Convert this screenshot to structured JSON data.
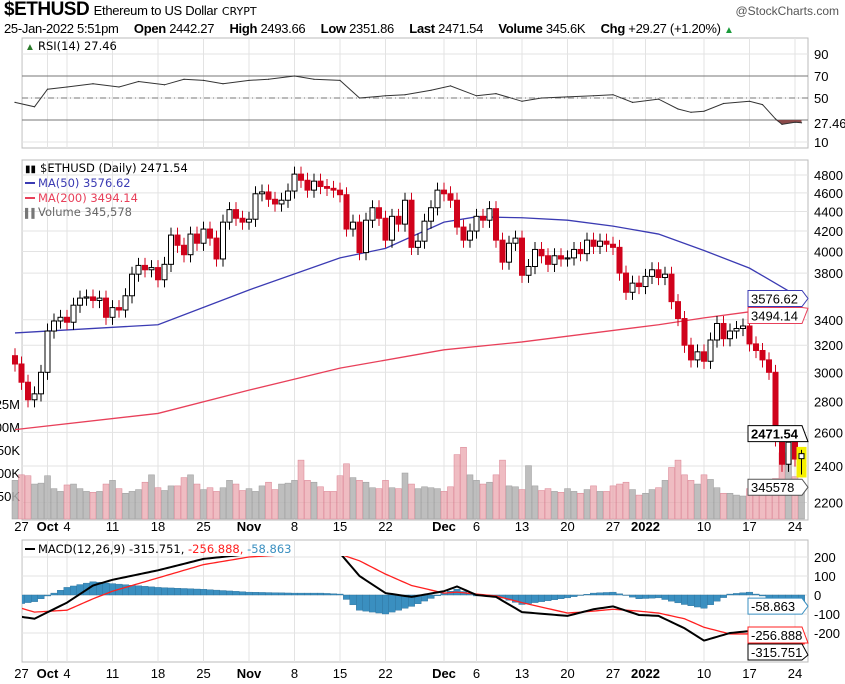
{
  "header": {
    "symbol": "$ETHUSD",
    "name": "Ethereum to US Dollar",
    "exchange": "CRYPT",
    "brand": "@StockCharts.com",
    "datetime": "25-Jan-2022 5:51pm",
    "open_label": "Open",
    "open": "2442.27",
    "high_label": "High",
    "high": "2493.66",
    "low_label": "Low",
    "low": "2351.86",
    "last_label": "Last",
    "last": "2471.54",
    "volume_label": "Volume",
    "volume": "345.6K",
    "chg_label": "Chg",
    "chg": "+29.27 (+1.20%)",
    "chg_icon": "up-triangle-icon"
  },
  "colors": {
    "up": "#000000",
    "down": "#d0021b",
    "ma50": "#3b3bb3",
    "ma200": "#e8405a",
    "macd": "#000000",
    "signal": "#ff2020",
    "hist": "#3a8fc0",
    "highlight": "#f5f000",
    "rsi_low": "#8b4a4a"
  },
  "chart_data": [
    {
      "type": "line",
      "panel": "rsi",
      "legend": "RSI(14) 27.46",
      "ylim": [
        0,
        100
      ],
      "yticks": [
        "90",
        "70",
        "50",
        "10"
      ],
      "reference_lines": [
        70,
        50,
        30
      ],
      "last_tag": "27.46",
      "x": [
        "2021-09-26",
        "2021-09-29",
        "2021-10-01",
        "2021-10-04",
        "2021-10-08",
        "2021-10-12",
        "2021-10-15",
        "2021-10-19",
        "2021-10-22",
        "2021-10-25",
        "2021-10-28",
        "2021-11-01",
        "2021-11-04",
        "2021-11-08",
        "2021-11-11",
        "2021-11-15",
        "2021-11-18",
        "2021-11-22",
        "2021-11-25",
        "2021-11-29",
        "2021-12-02",
        "2021-12-06",
        "2021-12-09",
        "2021-12-13",
        "2021-12-16",
        "2021-12-20",
        "2021-12-24",
        "2021-12-27",
        "2021-12-30",
        "2022-01-03",
        "2022-01-06",
        "2022-01-08",
        "2022-01-10",
        "2022-01-13",
        "2022-01-17",
        "2022-01-19",
        "2022-01-21",
        "2022-01-22",
        "2022-01-24",
        "2022-01-25"
      ],
      "values": [
        46,
        42,
        58,
        60,
        63,
        60,
        65,
        62,
        67,
        66,
        63,
        66,
        67,
        70,
        67,
        66,
        50,
        52,
        53,
        57,
        61,
        52,
        54,
        47,
        50,
        51,
        52,
        53,
        46,
        49,
        40,
        37,
        38,
        45,
        47,
        44,
        31,
        26,
        28,
        27.46
      ]
    },
    {
      "type": "candlestick",
      "panel": "price",
      "legend": "$ETHUSD (Daily) 2471.54",
      "scale": "log",
      "ylim": [
        2150,
        4900
      ],
      "yticks": [
        "4800",
        "4600",
        "4400",
        "4200",
        "4000",
        "3800",
        "3400",
        "3200",
        "3000",
        "2800",
        "2600",
        "2400",
        "2200"
      ],
      "start_date": "2021-09-26",
      "xticks": [
        {
          "date": "2021-09-27",
          "label": "27",
          "bold": false
        },
        {
          "date": "2021-10-01",
          "label": "Oct",
          "bold": true
        },
        {
          "date": "2021-10-04",
          "label": "4",
          "bold": false
        },
        {
          "date": "2021-10-11",
          "label": "11",
          "bold": false
        },
        {
          "date": "2021-10-18",
          "label": "18",
          "bold": false
        },
        {
          "date": "2021-10-25",
          "label": "25",
          "bold": false
        },
        {
          "date": "2021-11-01",
          "label": "Nov",
          "bold": true
        },
        {
          "date": "2021-11-08",
          "label": "8",
          "bold": false
        },
        {
          "date": "2021-11-15",
          "label": "15",
          "bold": false
        },
        {
          "date": "2021-11-22",
          "label": "22",
          "bold": false
        },
        {
          "date": "2021-12-01",
          "label": "Dec",
          "bold": true
        },
        {
          "date": "2021-12-06",
          "label": "6",
          "bold": false
        },
        {
          "date": "2021-12-13",
          "label": "13",
          "bold": false
        },
        {
          "date": "2021-12-20",
          "label": "20",
          "bold": false
        },
        {
          "date": "2021-12-27",
          "label": "27",
          "bold": false
        },
        {
          "date": "2022-01-01",
          "label": "2022",
          "bold": true
        },
        {
          "date": "2022-01-10",
          "label": "10",
          "bold": false
        },
        {
          "date": "2022-01-17",
          "label": "17",
          "bold": false
        },
        {
          "date": "2022-01-24",
          "label": "24",
          "bold": false
        }
      ],
      "close": [
        3060,
        2930,
        2810,
        2850,
        3000,
        3310,
        3390,
        3420,
        3380,
        3520,
        3580,
        3590,
        3560,
        3580,
        3420,
        3500,
        3480,
        3600,
        3790,
        3870,
        3830,
        3850,
        3740,
        3880,
        4160,
        4060,
        3970,
        4170,
        4080,
        4220,
        4130,
        3930,
        4290,
        4420,
        4330,
        4290,
        4320,
        4590,
        4610,
        4530,
        4480,
        4520,
        4620,
        4810,
        4740,
        4630,
        4730,
        4670,
        4650,
        4630,
        4580,
        4220,
        4290,
        3990,
        4310,
        4440,
        4330,
        4110,
        4350,
        4270,
        4520,
        4040,
        4100,
        4300,
        4440,
        4630,
        4590,
        4520,
        4240,
        4110,
        4200,
        4350,
        4310,
        4430,
        4110,
        3900,
        4080,
        4130,
        3780,
        3860,
        4020,
        3960,
        3880,
        3960,
        3930,
        3940,
        4020,
        3980,
        4110,
        4050,
        4100,
        4070,
        4040,
        3800,
        3630,
        3710,
        3680,
        3770,
        3830,
        3760,
        3790,
        3550,
        3410,
        3200,
        3090,
        3150,
        3080,
        3240,
        3370,
        3250,
        3310,
        3330,
        3350,
        3210,
        3160,
        3090,
        3000,
        2560,
        2410,
        2540,
        2440,
        2471.54
      ],
      "last_candle": {
        "open": 2442.27,
        "high": 2493.66,
        "low": 2351.86,
        "close": 2471.54
      },
      "series": [
        {
          "name": "MA(50)",
          "legend": "MA(50) 3576.62",
          "tag": "3576.62",
          "x": [
            "2021-09-26",
            "2021-10-18",
            "2021-11-01",
            "2021-11-15",
            "2021-11-22",
            "2021-12-01",
            "2021-12-06",
            "2021-12-13",
            "2021-12-20",
            "2021-12-27",
            "2022-01-03",
            "2022-01-10",
            "2022-01-17",
            "2022-01-25"
          ],
          "values": [
            3295,
            3360,
            3650,
            3940,
            4030,
            4290,
            4345,
            4335,
            4310,
            4250,
            4170,
            4010,
            3845,
            3576.62
          ]
        },
        {
          "name": "MA(200)",
          "legend": "MA(200) 3494.14",
          "tag": "3494.14",
          "x": [
            "2021-09-26",
            "2021-10-18",
            "2021-11-01",
            "2021-11-15",
            "2021-12-01",
            "2021-12-13",
            "2022-01-03",
            "2022-01-10",
            "2022-01-17",
            "2022-01-25"
          ],
          "values": [
            2617,
            2720,
            2875,
            3030,
            3165,
            3225,
            3360,
            3415,
            3465,
            3494.14
          ]
        }
      ]
    },
    {
      "type": "bar",
      "panel": "volume",
      "legend": "Volume 345,578",
      "tag": "345578",
      "yticks": [
        "25M",
        "00M",
        "50K",
        "00K",
        "50K"
      ],
      "values_k": [
        420,
        480,
        470,
        380,
        390,
        470,
        330,
        300,
        370,
        380,
        330,
        300,
        290,
        300,
        380,
        420,
        330,
        280,
        300,
        320,
        400,
        480,
        340,
        310,
        360,
        360,
        450,
        480,
        380,
        320,
        340,
        300,
        340,
        420,
        380,
        310,
        330,
        300,
        360,
        400,
        320,
        380,
        390,
        420,
        640,
        420,
        400,
        350,
        300,
        300,
        470,
        600,
        450,
        420,
        400,
        340,
        330,
        420,
        340,
        330,
        500,
        380,
        330,
        350,
        340,
        330,
        300,
        350,
        700,
        780,
        480,
        420,
        380,
        400,
        480,
        640,
        360,
        350,
        320,
        580,
        360,
        310,
        330,
        300,
        290,
        330,
        300,
        280,
        320,
        360,
        300,
        300,
        360,
        380,
        400,
        320,
        260,
        280,
        320,
        340,
        420,
        560,
        640,
        480,
        420,
        380,
        480,
        430,
        340,
        280,
        280,
        260,
        250,
        330,
        380,
        400,
        420,
        440,
        720,
        1000,
        460,
        345.578
      ]
    },
    {
      "type": "line",
      "panel": "macd",
      "legend_prefix": "MACD(12,26,9)",
      "legend_macd": "-315.751",
      "legend_signal": "-256.888",
      "legend_hist": "-58.863",
      "yticks": [
        "200",
        "100",
        "0",
        "-100",
        "-200"
      ],
      "tags": {
        "hist": "-58.863",
        "signal": "-256.888",
        "macd": "-315.751"
      },
      "x": [
        "2021-09-26",
        "2021-09-29",
        "2021-10-04",
        "2021-10-08",
        "2021-10-11",
        "2021-10-18",
        "2021-10-25",
        "2021-11-01",
        "2021-11-08",
        "2021-11-12",
        "2021-11-15",
        "2021-11-18",
        "2021-11-22",
        "2021-11-26",
        "2021-12-01",
        "2021-12-03",
        "2021-12-06",
        "2021-12-09",
        "2021-12-13",
        "2021-12-20",
        "2021-12-24",
        "2021-12-27",
        "2021-12-31",
        "2022-01-03",
        "2022-01-07",
        "2022-01-10",
        "2022-01-14",
        "2022-01-17",
        "2022-01-20",
        "2022-01-23",
        "2022-01-25"
      ],
      "series": [
        {
          "name": "MACD",
          "values": [
            -110,
            -125,
            -40,
            50,
            80,
            130,
            190,
            215,
            225,
            235,
            220,
            100,
            10,
            -10,
            20,
            45,
            0,
            -10,
            -90,
            -110,
            -75,
            -60,
            -105,
            -110,
            -175,
            -240,
            -200,
            -190,
            -215,
            -290,
            -315.751
          ]
        },
        {
          "name": "Signal",
          "values": [
            -60,
            -90,
            -80,
            -20,
            20,
            90,
            160,
            200,
            215,
            225,
            215,
            180,
            110,
            50,
            10,
            15,
            5,
            -5,
            -40,
            -95,
            -85,
            -75,
            -85,
            -95,
            -125,
            -170,
            -205,
            -205,
            -200,
            -230,
            -256.888
          ]
        }
      ]
    }
  ]
}
